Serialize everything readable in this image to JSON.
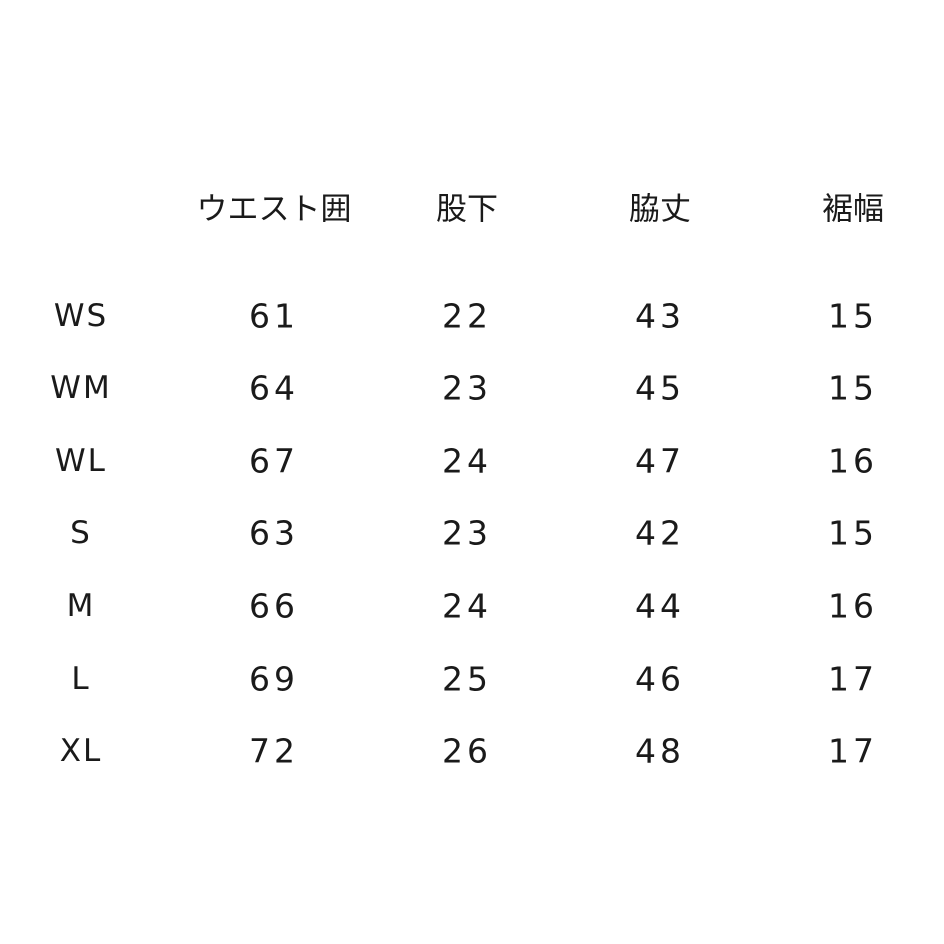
{
  "table": {
    "headers": [
      "ウエスト囲",
      "股下",
      "脇丈",
      "裾幅"
    ],
    "rows": [
      {
        "size": "WS",
        "values": [
          "61",
          "22",
          "43",
          "15"
        ]
      },
      {
        "size": "WM",
        "values": [
          "64",
          "23",
          "45",
          "15"
        ]
      },
      {
        "size": "WL",
        "values": [
          "67",
          "24",
          "47",
          "16"
        ]
      },
      {
        "size": "S",
        "values": [
          "63",
          "23",
          "42",
          "15"
        ]
      },
      {
        "size": "M",
        "values": [
          "66",
          "24",
          "44",
          "16"
        ]
      },
      {
        "size": "L",
        "values": [
          "69",
          "25",
          "46",
          "17"
        ]
      },
      {
        "size": "XL",
        "values": [
          "72",
          "26",
          "48",
          "17"
        ]
      }
    ]
  }
}
